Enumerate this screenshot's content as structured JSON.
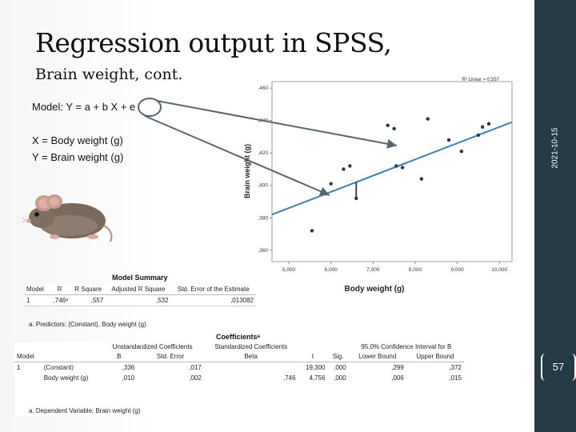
{
  "slide": {
    "title": "Regression output in SPSS,",
    "subtitle": "Brain weight, cont.",
    "model_equation": "Model: Y = a + b X + e",
    "x_definition": "X = Body weight (g)",
    "y_definition": "Y = Brain weight (g)",
    "date": "2021-10-15",
    "page_number": "57"
  },
  "chart_data": {
    "type": "scatter",
    "xlabel": "Body weight (g)",
    "ylabel": "Brain weight (g)",
    "xlim": [
      4.6,
      10.3
    ],
    "ylim": [
      0.353,
      0.464
    ],
    "xticks": [
      5,
      6,
      7,
      8,
      9,
      10
    ],
    "xtick_labels": [
      "5,000",
      "6,000",
      "7,000",
      "8,000",
      "9,000",
      "10,000"
    ],
    "yticks": [
      0.36,
      0.38,
      0.4,
      0.42,
      0.44,
      0.46
    ],
    "ytick_labels": [
      ",360",
      ",380",
      ",400",
      ",420",
      ",440",
      ",460"
    ],
    "legend_text": "R² Linear = 0,557",
    "points": [
      {
        "x": 5.55,
        "y": 0.372
      },
      {
        "x": 6.0,
        "y": 0.401
      },
      {
        "x": 6.3,
        "y": 0.41
      },
      {
        "x": 6.45,
        "y": 0.412
      },
      {
        "x": 6.6,
        "y": 0.392
      },
      {
        "x": 7.55,
        "y": 0.412
      },
      {
        "x": 7.7,
        "y": 0.411
      },
      {
        "x": 7.35,
        "y": 0.437
      },
      {
        "x": 7.5,
        "y": 0.435
      },
      {
        "x": 8.15,
        "y": 0.404
      },
      {
        "x": 8.3,
        "y": 0.441
      },
      {
        "x": 8.8,
        "y": 0.428
      },
      {
        "x": 9.1,
        "y": 0.421
      },
      {
        "x": 9.5,
        "y": 0.431
      },
      {
        "x": 9.6,
        "y": 0.436
      },
      {
        "x": 9.75,
        "y": 0.438
      }
    ],
    "fit_line": {
      "intercept": 0.336,
      "slope": 0.01
    },
    "residual_lines": [
      {
        "x": 6.6,
        "y": 0.392
      },
      {
        "x": 7.55,
        "y": 0.412
      }
    ]
  },
  "model_summary": {
    "title": "Model Summary",
    "headers": [
      "Model",
      "R",
      "R Square",
      "Adjusted R Square",
      "Std. Error of the Estimate"
    ],
    "rows": [
      [
        "1",
        ",746ᵃ",
        ",557",
        ",532",
        ",013082"
      ]
    ],
    "note": "a. Predictors: (Constant), Body weight (g)"
  },
  "coefficients": {
    "title": "Coefficientsᵃ",
    "group_headers": {
      "unstandardized": "Unstandardized Coefficients",
      "standardized": "Standardized Coefficients",
      "ci": "95,0% Confidence Interval for B"
    },
    "headers": [
      "Model",
      "",
      "B",
      "Std. Error",
      "Beta",
      "t",
      "Sig.",
      "Lower Bound",
      "Upper Bound"
    ],
    "rows": [
      [
        "1",
        "(Constant)",
        ",336",
        ",017",
        "",
        "19,300",
        ",000",
        ",299",
        ",372"
      ],
      [
        "",
        "Body weight (g)",
        ",010",
        ",002",
        ",746",
        "4,756",
        ",000",
        ",006",
        ",015"
      ]
    ],
    "note": "a. Dependent Variable: Brain weight (g)"
  },
  "colors": {
    "sidebar": "#243a45",
    "fit_line": "#3d7fb5",
    "point": "#1f3b47",
    "arrow": "#556670"
  }
}
